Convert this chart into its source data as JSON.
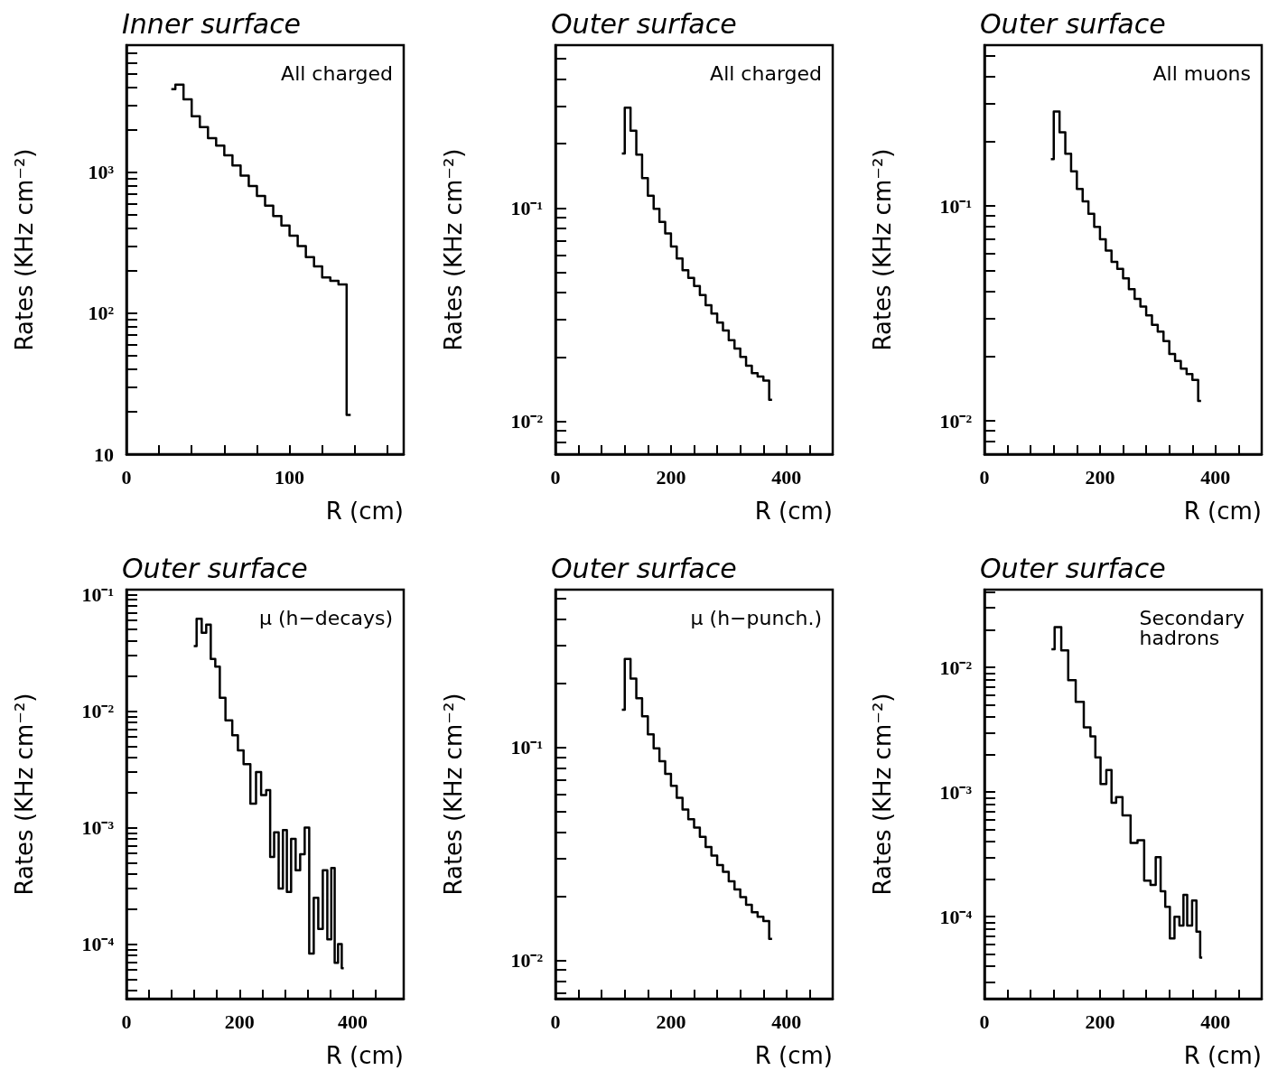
{
  "chart_data": [
    {
      "type": "step",
      "title": "Inner surface",
      "xlabel": "R (cm)",
      "ylabel": "Rates (KHz cm⁻²)",
      "annotations": [
        "All charged"
      ],
      "log": true,
      "grid": false,
      "marker": "none",
      "line_style": "solid",
      "color": "#000000",
      "xlim": [
        0,
        170
      ],
      "xticks": [
        0,
        {
          "value": 20,
          "label": null
        },
        {
          "value": 40,
          "label": null
        },
        {
          "value": 60,
          "label": null
        },
        {
          "value": 80,
          "label": null
        },
        100,
        {
          "value": 120,
          "label": null
        },
        {
          "value": 140,
          "label": null
        },
        {
          "value": 160,
          "label": null
        }
      ],
      "ylim": [
        10,
        8000
      ],
      "yticks": [
        10,
        {
          "value": 20,
          "label": null
        },
        {
          "value": 30,
          "label": null
        },
        {
          "value": 40,
          "label": null
        },
        {
          "value": 50,
          "label": null
        },
        {
          "value": 60,
          "label": null
        },
        {
          "value": 70,
          "label": null
        },
        {
          "value": 80,
          "label": null
        },
        {
          "value": 90,
          "label": null
        },
        {
          "value": 100,
          "label": "10²"
        },
        {
          "value": 200,
          "label": null
        },
        {
          "value": 300,
          "label": null
        },
        {
          "value": 400,
          "label": null
        },
        {
          "value": 500,
          "label": null
        },
        {
          "value": 600,
          "label": null
        },
        {
          "value": 700,
          "label": null
        },
        {
          "value": 800,
          "label": null
        },
        {
          "value": 900,
          "label": null
        },
        {
          "value": 1000,
          "label": "10³"
        },
        {
          "value": 2000,
          "label": null
        },
        {
          "value": 3000,
          "label": null
        },
        {
          "value": 4000,
          "label": null
        },
        {
          "value": 5000,
          "label": null
        },
        {
          "value": 6000,
          "label": null
        },
        {
          "value": 7000,
          "label": null
        },
        {
          "value": 8000,
          "label": null
        }
      ],
      "x": [
        27.5,
        32.5,
        37.5,
        42.5,
        47.5,
        52.5,
        57.5,
        62.5,
        67.5,
        72.5,
        77.5,
        82.5,
        87.5,
        92.5,
        97.5,
        102.5,
        107.5,
        112.5,
        117.5,
        122.5,
        127.5,
        132.5,
        137.5
      ],
      "values": [
        3900,
        4200,
        3300,
        2500,
        2100,
        1750,
        1550,
        1320,
        1120,
        950,
        800,
        680,
        580,
        490,
        420,
        355,
        300,
        250,
        215,
        180,
        170,
        160,
        19
      ]
    },
    {
      "type": "step",
      "title": "Outer surface",
      "xlabel": "R (cm)",
      "ylabel": "Rates (KHz cm⁻²)",
      "annotations": [
        "All charged"
      ],
      "log": true,
      "grid": false,
      "marker": "none",
      "line_style": "solid",
      "color": "#000000",
      "xlim": [
        0,
        480
      ],
      "xticks": [
        0,
        {
          "value": 40,
          "label": null
        },
        {
          "value": 80,
          "label": null
        },
        {
          "value": 120,
          "label": null
        },
        {
          "value": 160,
          "label": null
        },
        200,
        {
          "value": 240,
          "label": null
        },
        {
          "value": 280,
          "label": null
        },
        {
          "value": 320,
          "label": null
        },
        {
          "value": 360,
          "label": null
        },
        400,
        {
          "value": 440,
          "label": null
        }
      ],
      "ylim": [
        0.007,
        0.58
      ],
      "yticks": [
        {
          "value": 0.007,
          "label": null
        },
        {
          "value": 0.008,
          "label": null
        },
        {
          "value": 0.009,
          "label": null
        },
        {
          "value": 0.01,
          "label": "10⁻²"
        },
        {
          "value": 0.02,
          "label": null
        },
        {
          "value": 0.03,
          "label": null
        },
        {
          "value": 0.04,
          "label": null
        },
        {
          "value": 0.05,
          "label": null
        },
        {
          "value": 0.06,
          "label": null
        },
        {
          "value": 0.07,
          "label": null
        },
        {
          "value": 0.08,
          "label": null
        },
        {
          "value": 0.09,
          "label": null
        },
        {
          "value": 0.1,
          "label": "10⁻¹"
        },
        {
          "value": 0.2,
          "label": null
        },
        {
          "value": 0.3,
          "label": null
        },
        {
          "value": 0.4,
          "label": null
        },
        {
          "value": 0.5,
          "label": null
        }
      ],
      "x": [
        115,
        125,
        135,
        145,
        155,
        165,
        175,
        185,
        195,
        205,
        215,
        225,
        235,
        245,
        255,
        265,
        275,
        285,
        295,
        305,
        315,
        325,
        335,
        345,
        355,
        365,
        375
      ],
      "values": [
        0.18,
        0.295,
        0.23,
        0.178,
        0.138,
        0.114,
        0.099,
        0.086,
        0.076,
        0.066,
        0.058,
        0.051,
        0.047,
        0.043,
        0.039,
        0.035,
        0.032,
        0.029,
        0.0266,
        0.024,
        0.0219,
        0.02,
        0.0182,
        0.0168,
        0.0162,
        0.0155,
        0.0126
      ]
    },
    {
      "type": "step",
      "title": "Outer surface",
      "xlabel": "R (cm)",
      "ylabel": "Rates (KHz cm⁻²)",
      "annotations": [
        "All muons"
      ],
      "log": true,
      "grid": false,
      "marker": "none",
      "line_style": "solid",
      "color": "#000000",
      "xlim": [
        0,
        480
      ],
      "xticks": [
        0,
        {
          "value": 40,
          "label": null
        },
        {
          "value": 80,
          "label": null
        },
        {
          "value": 120,
          "label": null
        },
        {
          "value": 160,
          "label": null
        },
        200,
        {
          "value": 240,
          "label": null
        },
        {
          "value": 280,
          "label": null
        },
        {
          "value": 320,
          "label": null
        },
        {
          "value": 360,
          "label": null
        },
        400,
        {
          "value": 440,
          "label": null
        }
      ],
      "ylim": [
        0.007,
        0.56
      ],
      "yticks": [
        {
          "value": 0.007,
          "label": null
        },
        {
          "value": 0.008,
          "label": null
        },
        {
          "value": 0.009,
          "label": null
        },
        {
          "value": 0.01,
          "label": "10⁻²"
        },
        {
          "value": 0.02,
          "label": null
        },
        {
          "value": 0.03,
          "label": null
        },
        {
          "value": 0.04,
          "label": null
        },
        {
          "value": 0.05,
          "label": null
        },
        {
          "value": 0.06,
          "label": null
        },
        {
          "value": 0.07,
          "label": null
        },
        {
          "value": 0.08,
          "label": null
        },
        {
          "value": 0.09,
          "label": null
        },
        {
          "value": 0.1,
          "label": "10⁻¹"
        },
        {
          "value": 0.2,
          "label": null
        },
        {
          "value": 0.3,
          "label": null
        },
        {
          "value": 0.4,
          "label": null
        },
        {
          "value": 0.5,
          "label": null
        }
      ],
      "x": [
        115,
        125,
        135,
        145,
        155,
        165,
        175,
        185,
        195,
        205,
        215,
        225,
        235,
        245,
        255,
        265,
        275,
        285,
        295,
        305,
        315,
        325,
        335,
        345,
        355,
        365,
        375
      ],
      "values": [
        0.165,
        0.275,
        0.22,
        0.175,
        0.145,
        0.12,
        0.105,
        0.092,
        0.08,
        0.07,
        0.062,
        0.055,
        0.051,
        0.046,
        0.041,
        0.037,
        0.034,
        0.031,
        0.028,
        0.026,
        0.0235,
        0.0205,
        0.019,
        0.0175,
        0.0165,
        0.0155,
        0.0124
      ]
    },
    {
      "type": "step",
      "title": "Outer surface",
      "xlabel": "R (cm)",
      "ylabel": "Rates (KHz cm⁻²)",
      "annotations": [
        "μ (h−decays)"
      ],
      "log": true,
      "grid": false,
      "marker": "none",
      "line_style": "solid",
      "color": "#000000",
      "xlim": [
        0,
        490
      ],
      "xticks": [
        0,
        {
          "value": 40,
          "label": null
        },
        {
          "value": 80,
          "label": null
        },
        {
          "value": 120,
          "label": null
        },
        {
          "value": 160,
          "label": null
        },
        200,
        {
          "value": 240,
          "label": null
        },
        {
          "value": 280,
          "label": null
        },
        {
          "value": 320,
          "label": null
        },
        {
          "value": 360,
          "label": null
        },
        400,
        {
          "value": 440,
          "label": null
        }
      ],
      "ylim": [
        3.4e-05,
        0.11
      ],
      "yticks": [
        {
          "value": 4e-05,
          "label": null
        },
        {
          "value": 5e-05,
          "label": null
        },
        {
          "value": 6e-05,
          "label": null
        },
        {
          "value": 7e-05,
          "label": null
        },
        {
          "value": 8e-05,
          "label": null
        },
        {
          "value": 9e-05,
          "label": null
        },
        {
          "value": 0.0001,
          "label": "10⁻⁴"
        },
        {
          "value": 0.0002,
          "label": null
        },
        {
          "value": 0.0003,
          "label": null
        },
        {
          "value": 0.0004,
          "label": null
        },
        {
          "value": 0.0005,
          "label": null
        },
        {
          "value": 0.0006,
          "label": null
        },
        {
          "value": 0.0007,
          "label": null
        },
        {
          "value": 0.0008,
          "label": null
        },
        {
          "value": 0.0009,
          "label": null
        },
        {
          "value": 0.001,
          "label": "10⁻³"
        },
        {
          "value": 0.002,
          "label": null
        },
        {
          "value": 0.003,
          "label": null
        },
        {
          "value": 0.004,
          "label": null
        },
        {
          "value": 0.005,
          "label": null
        },
        {
          "value": 0.006,
          "label": null
        },
        {
          "value": 0.007,
          "label": null
        },
        {
          "value": 0.008,
          "label": null
        },
        {
          "value": 0.009,
          "label": null
        },
        {
          "value": 0.01,
          "label": "10⁻²"
        },
        {
          "value": 0.02,
          "label": null
        },
        {
          "value": 0.03,
          "label": null
        },
        {
          "value": 0.04,
          "label": null
        },
        {
          "value": 0.05,
          "label": null
        },
        {
          "value": 0.06,
          "label": null
        },
        {
          "value": 0.07,
          "label": null
        },
        {
          "value": 0.08,
          "label": null
        },
        {
          "value": 0.09,
          "label": null
        },
        {
          "value": 0.1,
          "label": "10⁻¹"
        }
      ],
      "x": [
        119,
        129,
        137,
        145,
        153,
        161,
        169,
        181,
        193,
        201,
        213,
        225,
        233,
        243,
        251,
        257,
        265,
        273,
        280,
        287,
        295,
        303,
        311,
        319,
        327,
        335,
        343,
        351,
        359,
        365,
        371,
        377,
        384
      ],
      "values": [
        0.036,
        0.062,
        0.047,
        0.055,
        0.028,
        0.024,
        0.013,
        0.0083,
        0.0062,
        0.0046,
        0.0035,
        0.0016,
        0.003,
        0.0019,
        0.0021,
        0.00056,
        0.00091,
        0.0003,
        0.00095,
        0.00028,
        0.0008,
        0.00043,
        0.00059,
        0.001,
        8.3e-05,
        0.00025,
        0.000135,
        0.00043,
        0.00011,
        0.00045,
        6.9e-05,
        0.0001,
        6.2e-05
      ]
    },
    {
      "type": "step",
      "title": "Outer surface",
      "xlabel": "R (cm)",
      "ylabel": "Rates (KHz cm⁻²)",
      "annotations": [
        "μ (h−punch.)"
      ],
      "log": true,
      "grid": false,
      "marker": "none",
      "line_style": "solid",
      "color": "#000000",
      "xlim": [
        0,
        480
      ],
      "xticks": [
        0,
        {
          "value": 40,
          "label": null
        },
        {
          "value": 80,
          "label": null
        },
        {
          "value": 120,
          "label": null
        },
        {
          "value": 160,
          "label": null
        },
        200,
        {
          "value": 240,
          "label": null
        },
        {
          "value": 280,
          "label": null
        },
        {
          "value": 320,
          "label": null
        },
        {
          "value": 360,
          "label": null
        },
        400,
        {
          "value": 440,
          "label": null
        }
      ],
      "ylim": [
        0.0066,
        0.55
      ],
      "yticks": [
        {
          "value": 0.007,
          "label": null
        },
        {
          "value": 0.008,
          "label": null
        },
        {
          "value": 0.009,
          "label": null
        },
        {
          "value": 0.01,
          "label": "10⁻²"
        },
        {
          "value": 0.02,
          "label": null
        },
        {
          "value": 0.03,
          "label": null
        },
        {
          "value": 0.04,
          "label": null
        },
        {
          "value": 0.05,
          "label": null
        },
        {
          "value": 0.06,
          "label": null
        },
        {
          "value": 0.07,
          "label": null
        },
        {
          "value": 0.08,
          "label": null
        },
        {
          "value": 0.09,
          "label": null
        },
        {
          "value": 0.1,
          "label": "10⁻¹"
        },
        {
          "value": 0.2,
          "label": null
        },
        {
          "value": 0.3,
          "label": null
        },
        {
          "value": 0.4,
          "label": null
        },
        {
          "value": 0.5,
          "label": null
        }
      ],
      "x": [
        115,
        125,
        135,
        145,
        155,
        165,
        175,
        185,
        195,
        205,
        215,
        225,
        235,
        245,
        255,
        265,
        275,
        285,
        295,
        305,
        315,
        325,
        335,
        345,
        355,
        365,
        375
      ],
      "values": [
        0.15,
        0.26,
        0.21,
        0.17,
        0.14,
        0.115,
        0.099,
        0.086,
        0.075,
        0.066,
        0.058,
        0.051,
        0.046,
        0.042,
        0.038,
        0.034,
        0.031,
        0.028,
        0.026,
        0.0235,
        0.0215,
        0.0198,
        0.0182,
        0.0168,
        0.016,
        0.0153,
        0.0126
      ]
    },
    {
      "type": "step",
      "title": "Outer surface",
      "xlabel": "R (cm)",
      "ylabel": "Rates (KHz cm⁻²)",
      "annotations": [
        "Secondary hadrons"
      ],
      "log": true,
      "grid": false,
      "marker": "none",
      "line_style": "solid",
      "color": "#000000",
      "xlim": [
        0,
        480
      ],
      "xticks": [
        0,
        {
          "value": 40,
          "label": null
        },
        {
          "value": 80,
          "label": null
        },
        {
          "value": 120,
          "label": null
        },
        {
          "value": 160,
          "label": null
        },
        200,
        {
          "value": 240,
          "label": null
        },
        {
          "value": 280,
          "label": null
        },
        {
          "value": 320,
          "label": null
        },
        {
          "value": 360,
          "label": null
        },
        400,
        {
          "value": 440,
          "label": null
        }
      ],
      "ylim": [
        2.2e-05,
        0.042
      ],
      "yticks": [
        {
          "value": 3e-05,
          "label": null
        },
        {
          "value": 4e-05,
          "label": null
        },
        {
          "value": 5e-05,
          "label": null
        },
        {
          "value": 6e-05,
          "label": null
        },
        {
          "value": 7e-05,
          "label": null
        },
        {
          "value": 8e-05,
          "label": null
        },
        {
          "value": 9e-05,
          "label": null
        },
        {
          "value": 0.0001,
          "label": "10⁻⁴"
        },
        {
          "value": 0.0002,
          "label": null
        },
        {
          "value": 0.0003,
          "label": null
        },
        {
          "value": 0.0004,
          "label": null
        },
        {
          "value": 0.0005,
          "label": null
        },
        {
          "value": 0.0006,
          "label": null
        },
        {
          "value": 0.0007,
          "label": null
        },
        {
          "value": 0.0008,
          "label": null
        },
        {
          "value": 0.0009,
          "label": null
        },
        {
          "value": 0.001,
          "label": "10⁻³"
        },
        {
          "value": 0.002,
          "label": null
        },
        {
          "value": 0.003,
          "label": null
        },
        {
          "value": 0.004,
          "label": null
        },
        {
          "value": 0.005,
          "label": null
        },
        {
          "value": 0.006,
          "label": null
        },
        {
          "value": 0.007,
          "label": null
        },
        {
          "value": 0.008,
          "label": null
        },
        {
          "value": 0.009,
          "label": null
        },
        {
          "value": 0.01,
          "label": "10⁻²"
        },
        {
          "value": 0.02,
          "label": null
        },
        {
          "value": 0.03,
          "label": null
        },
        {
          "value": 0.04,
          "label": null
        }
      ],
      "x": [
        116,
        127,
        139,
        151,
        165,
        179,
        188,
        196,
        206,
        216,
        224,
        232,
        246,
        260,
        270,
        283,
        292,
        301,
        309,
        317,
        325,
        333,
        342,
        347,
        355,
        364,
        370,
        377
      ],
      "values": [
        0.014,
        0.021,
        0.0137,
        0.0079,
        0.0053,
        0.0033,
        0.0028,
        0.0019,
        0.00116,
        0.0015,
        0.00082,
        0.00091,
        0.00065,
        0.00039,
        0.00041,
        0.000195,
        0.00018,
        0.0003,
        0.00016,
        0.00012,
        6.7e-05,
        0.0001,
        8.5e-05,
        0.00015,
        8.5e-05,
        0.000135,
        7.6e-05,
        4.7e-05
      ]
    }
  ]
}
